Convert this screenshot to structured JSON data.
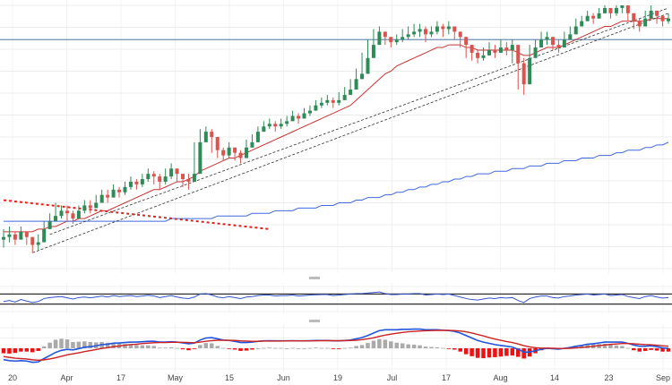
{
  "chart_data": {
    "type": "candlestick",
    "title": "",
    "xlabel": "",
    "ylabel": "",
    "x_ticks": [
      "20",
      "Apr",
      "17",
      "May",
      "15",
      "Jun",
      "19",
      "Jul",
      "17",
      "Aug",
      "14",
      "23",
      "Sep"
    ],
    "grid": true,
    "legend": "none",
    "price_panel": {
      "ylim": [
        0,
        100
      ],
      "horizontal_level": 87,
      "series": [
        {
          "kind": "candles",
          "up_color": "#2e8b57",
          "down_color": "#d9534f",
          "close": [
            12,
            13,
            11,
            14,
            12,
            9,
            10,
            15,
            18,
            20,
            22,
            21,
            19,
            22,
            24,
            23,
            25,
            28,
            27,
            30,
            29,
            31,
            33,
            32,
            34,
            36,
            35,
            33,
            35,
            38,
            36,
            34,
            33,
            36,
            48,
            52,
            50,
            45,
            43,
            46,
            44,
            42,
            46,
            48,
            52,
            54,
            55,
            54,
            55,
            56,
            58,
            57,
            59,
            60,
            62,
            63,
            64,
            63,
            64,
            66,
            68,
            72,
            74,
            80,
            85,
            90,
            88,
            86,
            87,
            88,
            89,
            90,
            91,
            89,
            90,
            92,
            91,
            92,
            90,
            88,
            85,
            82,
            80,
            81,
            83,
            82,
            84,
            83,
            85,
            78,
            70,
            80,
            84,
            87,
            88,
            85,
            84,
            87,
            89,
            92,
            94,
            96,
            95,
            97,
            99,
            97,
            99,
            100,
            97,
            94,
            92,
            95,
            98,
            96,
            94,
            95
          ],
          "high": [
            15,
            16,
            14,
            16,
            14,
            12,
            13,
            18,
            21,
            25,
            24,
            24,
            22,
            24,
            26,
            26,
            28,
            30,
            30,
            32,
            31,
            33,
            35,
            34,
            36,
            38,
            37,
            36,
            38,
            40,
            38,
            36,
            36,
            48,
            53,
            54,
            53,
            47,
            46,
            48,
            46,
            45,
            49,
            51,
            54,
            56,
            57,
            56,
            57,
            58,
            60,
            59,
            61,
            62,
            64,
            65,
            66,
            65,
            67,
            69,
            72,
            76,
            82,
            87,
            91,
            92,
            90,
            88,
            89,
            91,
            92,
            93,
            93,
            92,
            92,
            94,
            93,
            94,
            92,
            90,
            88,
            85,
            83,
            84,
            86,
            85,
            87,
            86,
            87,
            84,
            80,
            85,
            87,
            90,
            90,
            88,
            87,
            90,
            92,
            95,
            96,
            98,
            97,
            99,
            100,
            99,
            100,
            100,
            99,
            97,
            95,
            98,
            100,
            98,
            96,
            97
          ],
          "low": [
            8,
            10,
            9,
            11,
            9,
            6,
            7,
            12,
            15,
            18,
            19,
            18,
            17,
            19,
            21,
            21,
            23,
            25,
            25,
            27,
            27,
            28,
            30,
            30,
            31,
            33,
            32,
            30,
            32,
            34,
            33,
            31,
            30,
            34,
            46,
            48,
            44,
            42,
            41,
            42,
            41,
            40,
            43,
            46,
            50,
            52,
            53,
            52,
            53,
            54,
            56,
            55,
            57,
            58,
            60,
            61,
            62,
            61,
            62,
            64,
            66,
            70,
            72,
            78,
            83,
            86,
            85,
            84,
            85,
            86,
            87,
            88,
            88,
            86,
            88,
            89,
            88,
            89,
            87,
            84,
            80,
            79,
            78,
            79,
            81,
            80,
            82,
            81,
            78,
            68,
            66,
            77,
            82,
            85,
            85,
            83,
            82,
            85,
            87,
            90,
            92,
            94,
            93,
            95,
            97,
            95,
            96,
            97,
            94,
            91,
            90,
            93,
            95,
            93,
            92,
            93
          ]
        },
        {
          "kind": "line",
          "name": "",
          "color": "#cc3333",
          "values": [
            14,
            14,
            14,
            14,
            14,
            14,
            15,
            15,
            16,
            16,
            17,
            18,
            18,
            19,
            19,
            20,
            21,
            22,
            22,
            23,
            24,
            25,
            26,
            27,
            28,
            29,
            30,
            30,
            31,
            32,
            33,
            33,
            34,
            35,
            37,
            38,
            39,
            40,
            41,
            42,
            42,
            43,
            44,
            45,
            46,
            47,
            48,
            49,
            50,
            51,
            52,
            53,
            54,
            55,
            56,
            57,
            58,
            59,
            60,
            61,
            62,
            64,
            66,
            68,
            70,
            72,
            74,
            75,
            77,
            78,
            79,
            80,
            81,
            82,
            83,
            84,
            84,
            85,
            85,
            85,
            84,
            84,
            83,
            83,
            83,
            83,
            83,
            83,
            83,
            82,
            81,
            81,
            82,
            83,
            84,
            84,
            84,
            85,
            86,
            87,
            88,
            89,
            90,
            91,
            92,
            92,
            93,
            94,
            94,
            94,
            94,
            94,
            95,
            95,
            95,
            95
          ]
        },
        {
          "kind": "line",
          "name": "",
          "color": "#4169e1",
          "values": [
            18,
            18,
            18,
            18,
            18,
            18,
            18,
            18,
            18,
            18,
            18,
            18,
            18,
            18,
            18,
            18,
            18,
            18,
            18,
            18,
            18,
            18,
            18,
            18,
            18,
            18,
            18,
            18,
            18,
            19,
            19,
            19,
            19,
            19,
            19,
            19,
            19,
            20,
            20,
            20,
            20,
            20,
            20,
            21,
            21,
            21,
            21,
            22,
            22,
            22,
            22,
            23,
            23,
            23,
            23,
            24,
            24,
            24,
            25,
            25,
            25,
            26,
            26,
            27,
            27,
            27,
            28,
            28,
            29,
            29,
            30,
            30,
            31,
            31,
            32,
            32,
            33,
            33,
            34,
            34,
            35,
            35,
            36,
            36,
            36,
            37,
            37,
            37,
            38,
            38,
            38,
            39,
            39,
            39,
            40,
            40,
            40,
            41,
            41,
            41,
            42,
            42,
            42,
            43,
            43,
            43,
            44,
            44,
            45,
            45,
            45,
            46,
            46,
            47,
            47,
            48
          ]
        }
      ]
    },
    "rsi_panel": {
      "ylim": [
        0,
        100
      ],
      "upper_level": 70,
      "lower_level": 30,
      "color": "#3355cc",
      "values": [
        40,
        44,
        38,
        48,
        42,
        36,
        40,
        52,
        56,
        58,
        60,
        55,
        50,
        56,
        58,
        55,
        58,
        62,
        58,
        64,
        60,
        62,
        64,
        60,
        62,
        65,
        62,
        56,
        60,
        64,
        58,
        54,
        52,
        58,
        70,
        72,
        66,
        58,
        55,
        60,
        56,
        52,
        58,
        60,
        64,
        66,
        66,
        62,
        64,
        64,
        66,
        62,
        64,
        66,
        67,
        68,
        68,
        64,
        66,
        68,
        70,
        72,
        72,
        74,
        76,
        78,
        72,
        68,
        68,
        70,
        70,
        72,
        72,
        66,
        68,
        70,
        68,
        70,
        64,
        58,
        52,
        48,
        46,
        50,
        54,
        52,
        56,
        54,
        56,
        44,
        36,
        52,
        58,
        62,
        62,
        56,
        54,
        60,
        62,
        66,
        68,
        70,
        66,
        68,
        70,
        64,
        66,
        68,
        60,
        56,
        52,
        60,
        64,
        58,
        54,
        56
      ]
    },
    "macd_panel": {
      "ylim": [
        -1,
        1
      ],
      "macd_color": "#2255dd",
      "signal_color": "#cc2222",
      "histogram_positive_color": "#aaaaaa",
      "histogram_negative_color": "#ee1111",
      "macd": [
        -0.55,
        -0.6,
        -0.62,
        -0.6,
        -0.62,
        -0.68,
        -0.66,
        -0.5,
        -0.35,
        -0.2,
        -0.1,
        -0.05,
        -0.08,
        -0.02,
        0.05,
        0.08,
        0.12,
        0.18,
        0.2,
        0.25,
        0.26,
        0.28,
        0.3,
        0.3,
        0.32,
        0.34,
        0.34,
        0.3,
        0.3,
        0.32,
        0.3,
        0.26,
        0.22,
        0.25,
        0.4,
        0.5,
        0.52,
        0.46,
        0.4,
        0.38,
        0.34,
        0.28,
        0.28,
        0.3,
        0.34,
        0.36,
        0.37,
        0.36,
        0.36,
        0.36,
        0.37,
        0.36,
        0.36,
        0.37,
        0.38,
        0.38,
        0.38,
        0.36,
        0.36,
        0.38,
        0.4,
        0.46,
        0.52,
        0.62,
        0.74,
        0.86,
        0.9,
        0.9,
        0.9,
        0.92,
        0.92,
        0.93,
        0.93,
        0.9,
        0.9,
        0.9,
        0.88,
        0.86,
        0.82,
        0.74,
        0.62,
        0.5,
        0.38,
        0.3,
        0.24,
        0.18,
        0.14,
        0.1,
        0.06,
        -0.05,
        -0.18,
        -0.18,
        -0.12,
        -0.05,
        0.0,
        -0.02,
        -0.04,
        0.0,
        0.04,
        0.1,
        0.14,
        0.2,
        0.22,
        0.26,
        0.3,
        0.3,
        0.3,
        0.3,
        0.24,
        0.16,
        0.1,
        0.1,
        0.12,
        0.08,
        0.02,
        0.0
      ],
      "signal": [
        -0.4,
        -0.44,
        -0.48,
        -0.5,
        -0.52,
        -0.56,
        -0.58,
        -0.56,
        -0.52,
        -0.46,
        -0.39,
        -0.32,
        -0.27,
        -0.22,
        -0.16,
        -0.11,
        -0.06,
        -0.01,
        0.03,
        0.08,
        0.11,
        0.15,
        0.18,
        0.2,
        0.23,
        0.25,
        0.27,
        0.28,
        0.28,
        0.29,
        0.29,
        0.29,
        0.28,
        0.27,
        0.3,
        0.34,
        0.37,
        0.39,
        0.39,
        0.39,
        0.38,
        0.36,
        0.35,
        0.34,
        0.34,
        0.35,
        0.35,
        0.35,
        0.35,
        0.36,
        0.36,
        0.36,
        0.36,
        0.36,
        0.36,
        0.37,
        0.37,
        0.37,
        0.37,
        0.37,
        0.38,
        0.39,
        0.42,
        0.46,
        0.51,
        0.58,
        0.64,
        0.69,
        0.73,
        0.77,
        0.8,
        0.82,
        0.84,
        0.85,
        0.86,
        0.87,
        0.87,
        0.87,
        0.86,
        0.84,
        0.8,
        0.74,
        0.67,
        0.6,
        0.52,
        0.45,
        0.39,
        0.33,
        0.28,
        0.21,
        0.13,
        0.07,
        0.03,
        0.01,
        0.01,
        0.0,
        -0.01,
        -0.01,
        0.0,
        0.02,
        0.04,
        0.07,
        0.1,
        0.13,
        0.16,
        0.19,
        0.21,
        0.23,
        0.23,
        0.22,
        0.2,
        0.18,
        0.17,
        0.15,
        0.12,
        0.1
      ]
    }
  }
}
